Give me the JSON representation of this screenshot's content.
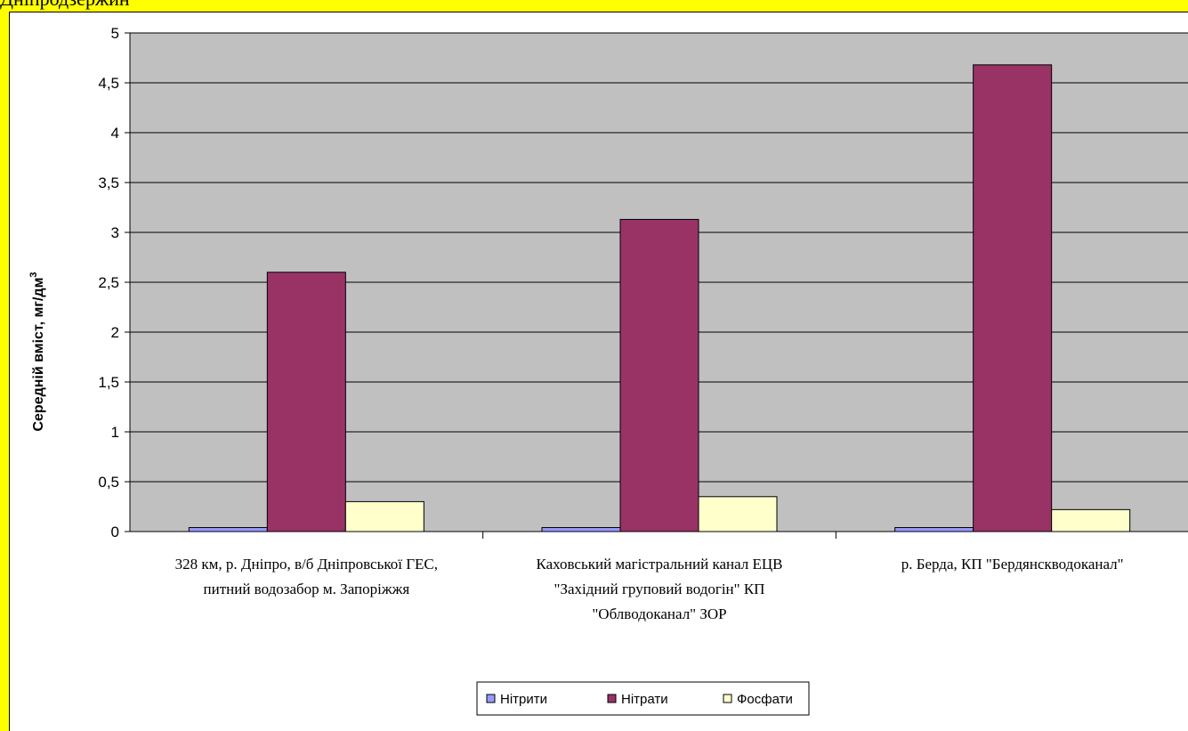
{
  "header_fragment": "Дніпродзержин",
  "colors": {
    "page_background": "#ffff00",
    "plot_background": "#c0c0c0",
    "series": [
      "#9999ff",
      "#993366",
      "#ffffcc"
    ]
  },
  "chart_data": {
    "type": "bar",
    "title": "",
    "xlabel": "",
    "ylabel": "Середній вміст, мг/дм",
    "ylabel_superscript": "3",
    "ylim": [
      0,
      5
    ],
    "yticks": [
      "0",
      "0,5",
      "1",
      "1,5",
      "2",
      "2,5",
      "3",
      "3,5",
      "4",
      "4,5",
      "5"
    ],
    "ytick_values": [
      0,
      0.5,
      1,
      1.5,
      2,
      2.5,
      3,
      3.5,
      4,
      4.5,
      5
    ],
    "grid": true,
    "legend_position": "bottom",
    "categories": [
      [
        "328 км, р. Дніпро, в/б Дніпровської ГЕС,",
        "питний водозабор м. Запоріжжя"
      ],
      [
        "Каховський магістральний канал ЕЦВ",
        "\"Західний груповий водогін\" КП",
        "\"Облводоканал\" ЗОР"
      ],
      [
        "р. Берда, КП \"Бердянскводоканал\""
      ]
    ],
    "series": [
      {
        "name": "Нітрити",
        "values": [
          0.04,
          0.04,
          0.04
        ]
      },
      {
        "name": "Нітрати",
        "values": [
          2.6,
          3.13,
          4.68
        ]
      },
      {
        "name": "Фосфати",
        "values": [
          0.3,
          0.35,
          0.22
        ]
      }
    ]
  }
}
